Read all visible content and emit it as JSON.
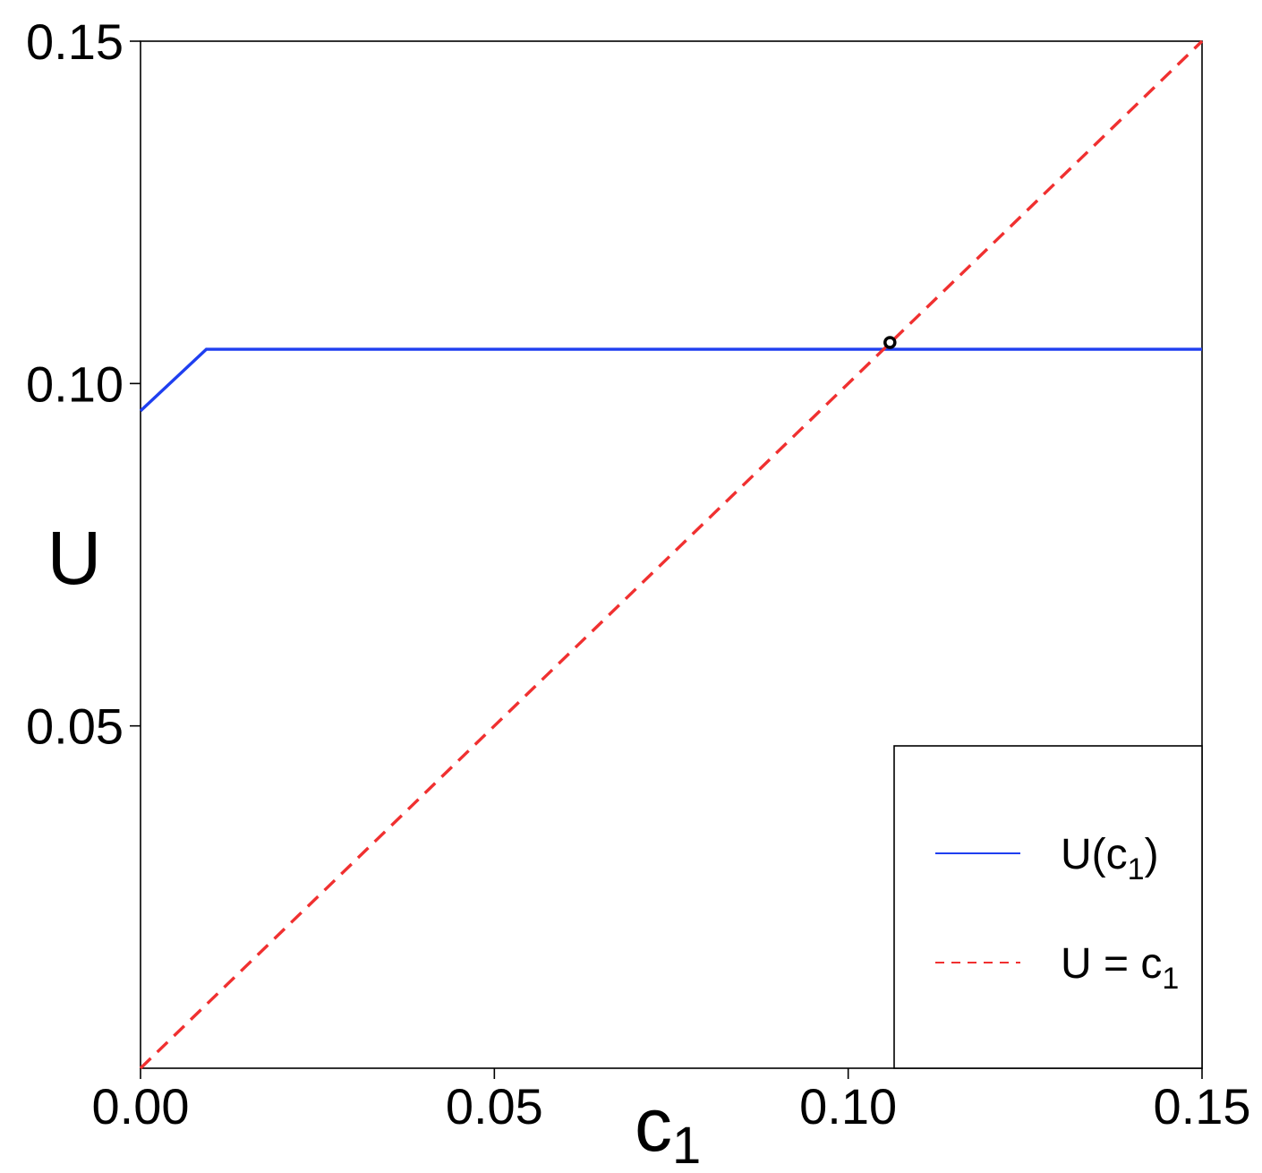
{
  "chart_data": {
    "type": "line",
    "xlabel": "c",
    "xlabel_sub": "1",
    "ylabel": "U",
    "xlim": [
      0.0,
      0.15
    ],
    "ylim": [
      0.0,
      0.15
    ],
    "x_ticks": [
      "0.00",
      "0.05",
      "0.10",
      "0.15"
    ],
    "y_ticks": [
      "0.05",
      "0.10",
      "0.15"
    ],
    "x_tick_values": [
      0.0,
      0.05,
      0.1,
      0.15
    ],
    "y_tick_values": [
      0.05,
      0.1,
      0.15
    ],
    "grid": false,
    "legend_position": "bottom-right",
    "series": [
      {
        "name": "U(c1)",
        "legend_main": "U(c",
        "legend_sub": "1",
        "legend_tail": ")",
        "style": "solid",
        "color": "#1f3ff0",
        "x": [
          0.0,
          0.0093,
          0.15
        ],
        "y": [
          0.096,
          0.105,
          0.105
        ]
      },
      {
        "name": "U = c1",
        "legend_main": "U = c",
        "legend_sub": "1",
        "legend_tail": "",
        "style": "dashed",
        "color": "#f03030",
        "x": [
          0.0,
          0.15
        ],
        "y": [
          0.0,
          0.15
        ]
      }
    ],
    "marker": {
      "x": 0.1059,
      "y": 0.106,
      "color": "#000000"
    }
  }
}
